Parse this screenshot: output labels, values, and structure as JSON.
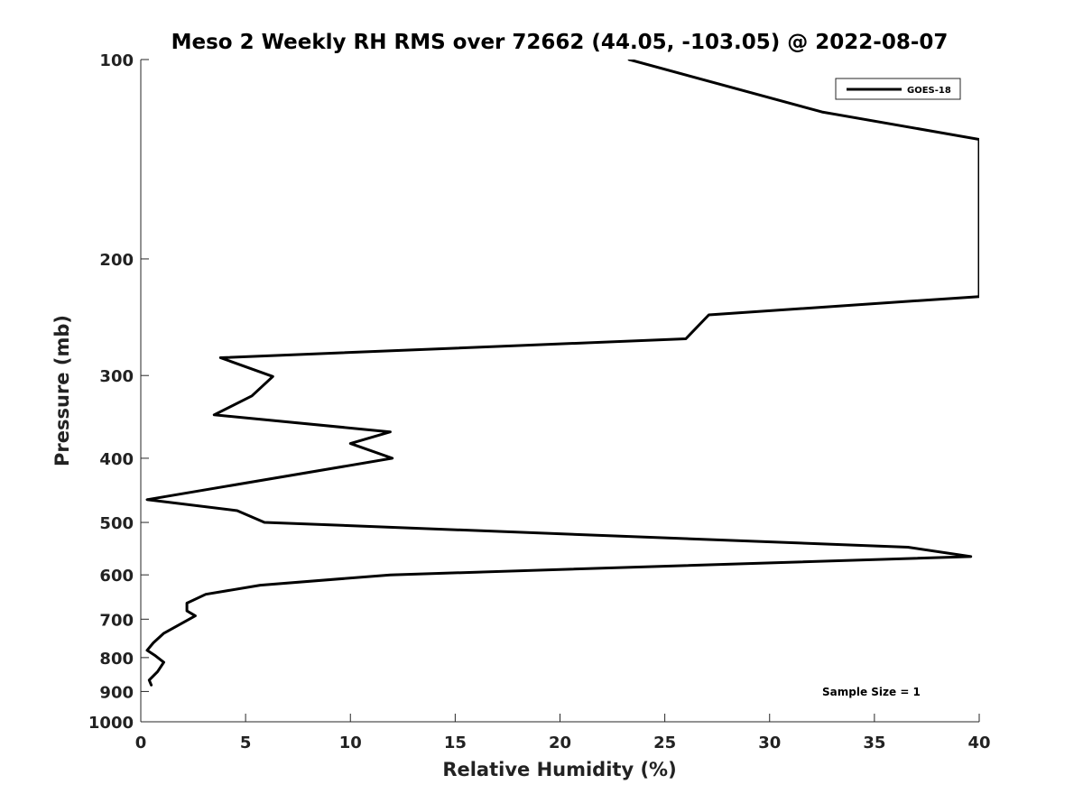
{
  "chart_data": {
    "type": "line",
    "title": "Meso 2 Weekly RH RMS over 72662 (44.05, -103.05) @ 2022-08-07",
    "xlabel": "Relative Humidity (%)",
    "ylabel": "Pressure (mb)",
    "xlim": [
      0,
      40
    ],
    "ylim": [
      100,
      1000
    ],
    "yscale": "log",
    "yreversed": true,
    "grid": false,
    "legend_position": "top-right",
    "xticks": [
      0,
      5,
      10,
      15,
      20,
      25,
      30,
      35,
      40
    ],
    "xtick_labels": [
      "0",
      "5",
      "10",
      "15",
      "20",
      "25",
      "30",
      "35",
      "40"
    ],
    "yticks": [
      100,
      200,
      300,
      400,
      500,
      600,
      700,
      800,
      900,
      1000
    ],
    "ytick_labels": [
      "100",
      "200",
      "300",
      "400",
      "500",
      "600",
      "700",
      "800",
      "900",
      "1000"
    ],
    "annotation": "Sample Size = 1",
    "series": [
      {
        "name": "GOES-18",
        "color": "#000000",
        "x": [
          23.3,
          32.5,
          40.0,
          40.0,
          27.1,
          26.0,
          3.8,
          6.3,
          5.3,
          3.5,
          11.9,
          10.0,
          12.0,
          0.3,
          4.6,
          5.9,
          36.6,
          39.6,
          11.9,
          5.7,
          3.1,
          2.2,
          2.2,
          2.6,
          1.1,
          0.6,
          0.3,
          0.7,
          1.1,
          0.8,
          0.4,
          0.5
        ],
        "y": [
          100,
          120,
          132,
          228,
          243,
          264,
          282,
          301,
          322,
          344,
          365,
          380,
          400,
          462,
          480,
          500,
          545,
          563,
          600,
          622,
          642,
          662,
          680,
          692,
          735,
          760,
          780,
          795,
          813,
          840,
          865,
          880
        ]
      }
    ]
  }
}
